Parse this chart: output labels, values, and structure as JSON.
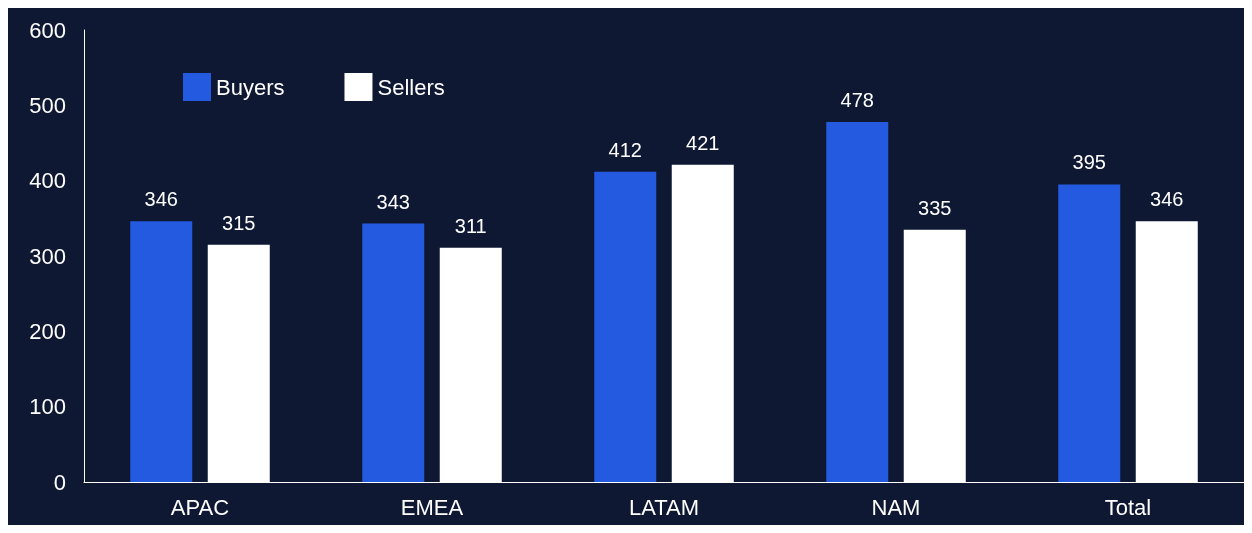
{
  "chart_data": {
    "type": "bar",
    "categories": [
      "APAC",
      "EMEA",
      "LATAM",
      "NAM",
      "Total"
    ],
    "series": [
      {
        "name": "Buyers",
        "color": "#245ae0",
        "values": [
          346,
          343,
          412,
          478,
          395
        ]
      },
      {
        "name": "Sellers",
        "color": "#ffffff",
        "values": [
          315,
          311,
          421,
          335,
          346
        ]
      }
    ],
    "ylim": [
      0,
      600
    ],
    "yticks": [
      0,
      100,
      200,
      300,
      400,
      500,
      600
    ],
    "grid": false,
    "legend": "top left",
    "data_labels": true
  }
}
